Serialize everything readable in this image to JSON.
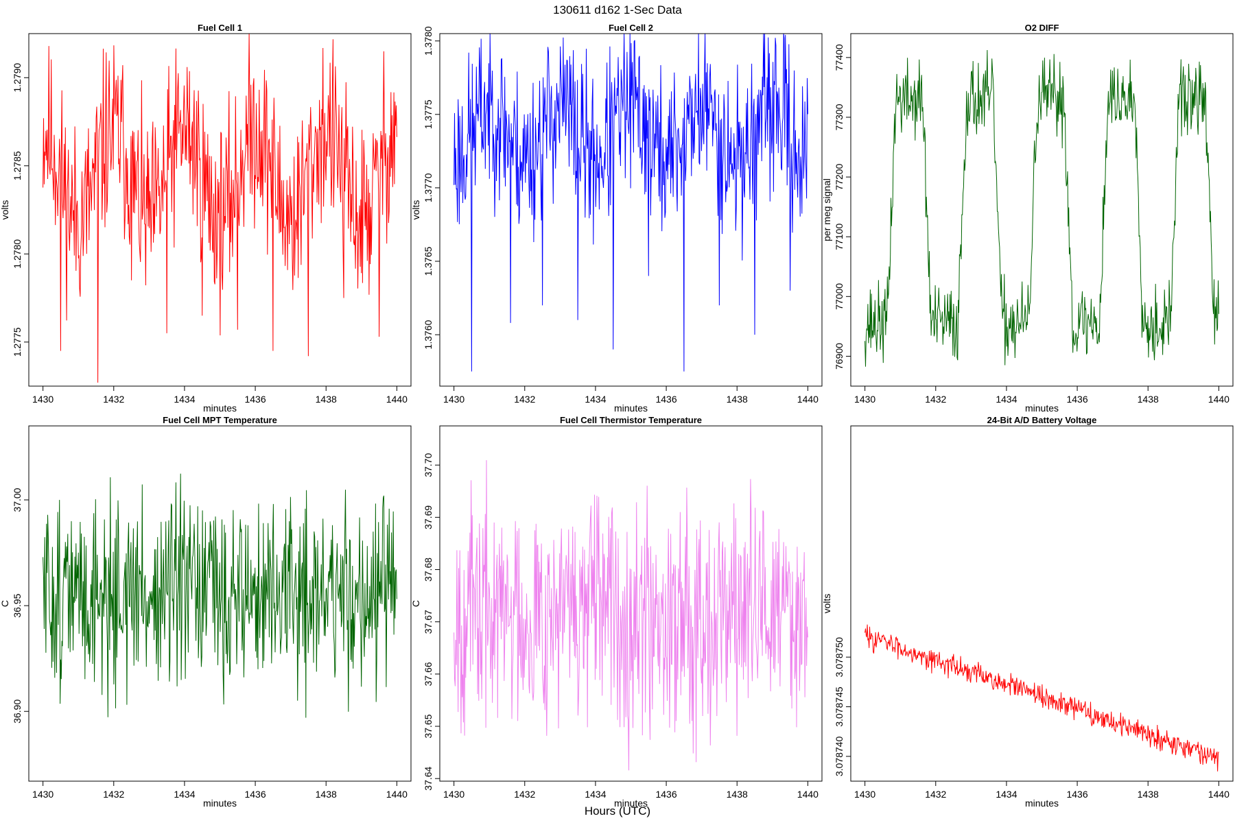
{
  "page": {
    "title": "130611    d162    1-Sec Data",
    "bottom_label": "Hours (UTC)"
  },
  "chart_data": [
    {
      "type": "line",
      "title": "Fuel Cell 1",
      "xlabel": "minutes",
      "ylabel": "volts",
      "color": "#ff0000",
      "xlim": [
        1429.6,
        1440.4
      ],
      "ylim": [
        1.27725,
        1.27925
      ],
      "xticks": [
        1430,
        1432,
        1434,
        1436,
        1438,
        1440
      ],
      "xtick_labels": [
        "1430",
        "1432",
        "1434",
        "1436",
        "1438",
        "1440"
      ],
      "yticks": [
        1.2775,
        1.278,
        1.2785,
        1.279
      ],
      "ytick_labels": [
        "1.2775",
        "1.2780",
        "1.2785",
        "1.2790"
      ],
      "signal": {
        "base": 1.2787,
        "amp": 0.0005,
        "noise": 0.00032,
        "shape": "dip",
        "spike_amp": 0.0011,
        "seed": 11,
        "n": 600,
        "spikes": [
          {
            "x": 1430.5,
            "y": 1.27745
          },
          {
            "x": 1431.55,
            "y": 1.27727
          },
          {
            "x": 1432.5,
            "y": 1.27785
          },
          {
            "x": 1433.5,
            "y": 1.27755
          },
          {
            "x": 1434.5,
            "y": 1.27765
          },
          {
            "x": 1435.5,
            "y": 1.27757
          },
          {
            "x": 1436.5,
            "y": 1.27745
          },
          {
            "x": 1437.5,
            "y": 1.27742
          },
          {
            "x": 1438.5,
            "y": 1.27775
          },
          {
            "x": 1439.5,
            "y": 1.27753
          }
        ]
      }
    },
    {
      "type": "line",
      "title": "Fuel Cell 2",
      "xlabel": "minutes",
      "ylabel": "volts",
      "color": "#0000ff",
      "xlim": [
        1429.6,
        1440.4
      ],
      "ylim": [
        1.37565,
        1.37805
      ],
      "xticks": [
        1430,
        1432,
        1434,
        1436,
        1438,
        1440
      ],
      "xtick_labels": [
        "1430",
        "1432",
        "1434",
        "1436",
        "1438",
        "1440"
      ],
      "yticks": [
        1.376,
        1.3765,
        1.377,
        1.3775,
        1.378
      ],
      "ytick_labels": [
        "1.3760",
        "1.3765",
        "1.3770",
        "1.3775",
        "1.3780"
      ],
      "signal": {
        "base": 1.3772,
        "amp": 0.00035,
        "noise": 0.00035,
        "shape": "hump",
        "spike_amp": 0.0012,
        "seed": 23,
        "n": 600,
        "spikes": [
          {
            "x": 1430.5,
            "y": 1.37575
          },
          {
            "x": 1431.6,
            "y": 1.37608
          },
          {
            "x": 1432.5,
            "y": 1.3762
          },
          {
            "x": 1433.5,
            "y": 1.3761
          },
          {
            "x": 1434.5,
            "y": 1.3759
          },
          {
            "x": 1435.5,
            "y": 1.3764
          },
          {
            "x": 1436.5,
            "y": 1.37575
          },
          {
            "x": 1437.5,
            "y": 1.3762
          },
          {
            "x": 1438.5,
            "y": 1.376
          },
          {
            "x": 1439.5,
            "y": 1.3763
          }
        ]
      }
    },
    {
      "type": "line",
      "title": "O2 DIFF",
      "xlabel": "minutes",
      "ylabel": "per meg signal",
      "color": "#006400",
      "xlim": [
        1429.6,
        1440.4
      ],
      "ylim": [
        76850,
        77440
      ],
      "xticks": [
        1430,
        1432,
        1434,
        1436,
        1438,
        1440
      ],
      "xtick_labels": [
        "1430",
        "1432",
        "1434",
        "1436",
        "1438",
        "1440"
      ],
      "yticks": [
        76900,
        77000,
        77100,
        77200,
        77300,
        77400
      ],
      "ytick_labels": [
        "76900",
        "77000",
        "77100",
        "77200",
        "77300",
        "77400"
      ],
      "signal": {
        "shape": "square",
        "low": 76955,
        "high": 77330,
        "period": 2.0,
        "high_start": 0.75,
        "high_end": 1.75,
        "noise": 40,
        "seed": 37,
        "n": 600,
        "spikes": []
      }
    },
    {
      "type": "line",
      "title": "Fuel Cell MPT Temperature",
      "xlabel": "minutes",
      "ylabel": "C",
      "color": "#006400",
      "xlim": [
        1429.6,
        1440.4
      ],
      "ylim": [
        36.867,
        37.035
      ],
      "xticks": [
        1430,
        1432,
        1434,
        1436,
        1438,
        1440
      ],
      "xtick_labels": [
        "1430",
        "1432",
        "1434",
        "1436",
        "1438",
        "1440"
      ],
      "yticks": [
        36.9,
        36.95,
        37.0
      ],
      "ytick_labels": [
        "36.90",
        "36.95",
        "37.00"
      ],
      "signal": {
        "shape": "flat",
        "base": 36.955,
        "noise": 0.028,
        "seed": 51,
        "n": 600,
        "spikes": []
      }
    },
    {
      "type": "line",
      "title": "Fuel Cell Thermistor Temperature",
      "xlabel": "minutes",
      "ylabel": "C",
      "color": "#ee82ee",
      "xlim": [
        1429.6,
        1440.4
      ],
      "ylim": [
        37.6395,
        37.7075
      ],
      "xticks": [
        1430,
        1432,
        1434,
        1436,
        1438,
        1440
      ],
      "xtick_labels": [
        "1430",
        "1432",
        "1434",
        "1436",
        "1438",
        "1440"
      ],
      "yticks": [
        37.64,
        37.65,
        37.66,
        37.67,
        37.68,
        37.69,
        37.7
      ],
      "ytick_labels": [
        "37.64",
        "37.65",
        "37.66",
        "37.67",
        "37.68",
        "37.69",
        "37.70"
      ],
      "signal": {
        "shape": "flat",
        "base": 37.672,
        "noise": 0.0135,
        "seed": 67,
        "n": 600,
        "spikes": []
      }
    },
    {
      "type": "line",
      "title": "24-Bit A/D Battery Voltage",
      "xlabel": "minutes",
      "ylabel": "volts",
      "color": "#ff0000",
      "xlim": [
        1429.6,
        1440.4
      ],
      "ylim": [
        3.0787375,
        3.0787733
      ],
      "xticks": [
        1430,
        1432,
        1434,
        1436,
        1438,
        1440
      ],
      "xtick_labels": [
        "1430",
        "1432",
        "1434",
        "1436",
        "1438",
        "1440"
      ],
      "yticks": [
        3.07874,
        3.078745,
        3.07875
      ],
      "ytick_labels": [
        "3.078740",
        "3.078745",
        "3.078750"
      ],
      "signal": {
        "shape": "trend",
        "start": 3.0787522,
        "end": 3.0787398,
        "noise": 7e-07,
        "seed": 83,
        "n": 600,
        "spikes": []
      }
    }
  ]
}
